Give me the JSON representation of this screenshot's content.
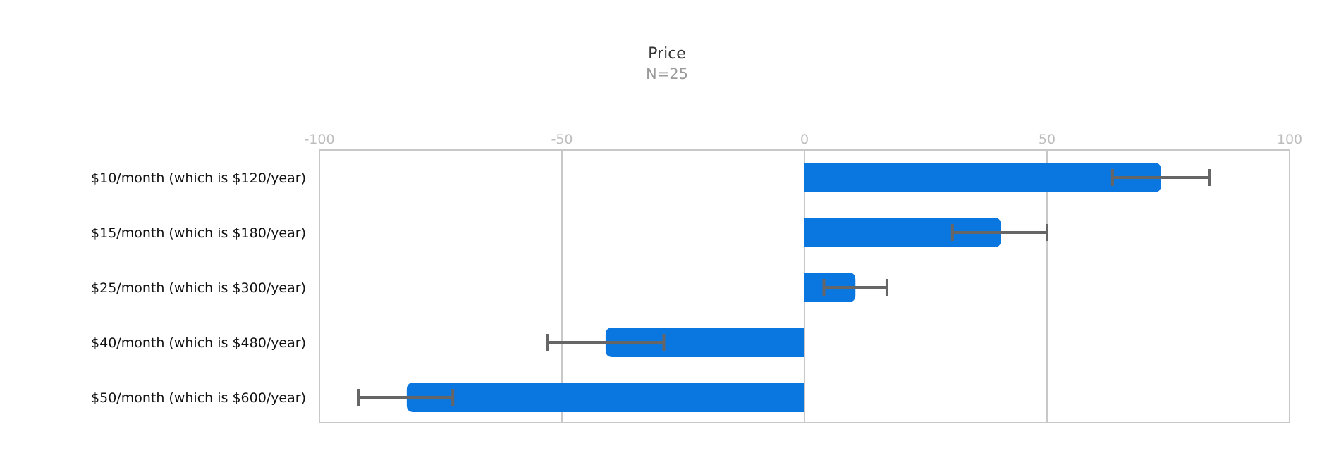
{
  "colors": {
    "bar": "#0a76df",
    "error_bar": "#666666",
    "grid": "#c8c8c8",
    "frame": "#c8c8c8",
    "tick_text": "#bdbdbd"
  },
  "chart_data": {
    "type": "bar",
    "orientation": "horizontal",
    "title": "Price",
    "subtitle": "N=25",
    "xlim": [
      -100,
      100
    ],
    "xticks": [
      -100,
      -50,
      0,
      50,
      100
    ],
    "xtick_labels": [
      "-100",
      "-50",
      "0",
      "50",
      "100"
    ],
    "x_axis_position": "top",
    "grid": true,
    "categories": [
      "$10/month (which is $120/year)",
      "$15/month (which is $180/year)",
      "$25/month (which is $300/year)",
      "$40/month (which is $480/year)",
      "$50/month (which is $600/year)"
    ],
    "values": [
      73.5,
      40.5,
      10.5,
      -41,
      -82
    ],
    "error_low": [
      63.5,
      30.5,
      4,
      -53,
      -92
    ],
    "error_high": [
      83.5,
      50,
      17,
      -29,
      -72.5
    ]
  }
}
